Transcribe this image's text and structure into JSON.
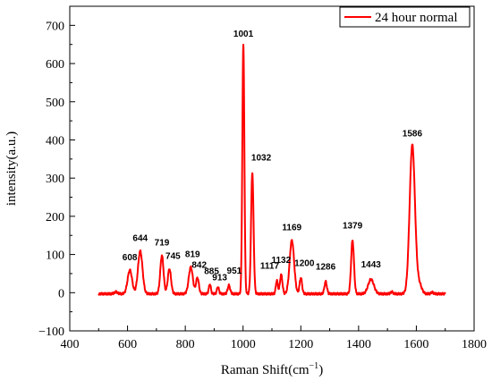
{
  "chart_data": {
    "type": "line",
    "xlabel": "Raman Shift(cm",
    "xlabel_superscript": "−1",
    "xlabel_suffix": ")",
    "ylabel": "intensity(a.u.)",
    "xlim": [
      400,
      1800
    ],
    "ylim": [
      -100,
      750
    ],
    "xticks": [
      400,
      600,
      800,
      1000,
      1200,
      1400,
      1600,
      1800
    ],
    "yticks": [
      -100,
      0,
      100,
      200,
      300,
      400,
      500,
      600,
      700
    ],
    "grid": false,
    "legend": {
      "position": "top-right"
    },
    "series": [
      {
        "name": "24 hour normal",
        "color": "#ff0000",
        "baseline": {
          "x": [
            500,
            1700
          ],
          "y": -3
        },
        "peaks": [
          {
            "x": 560,
            "height": 5,
            "width": 8
          },
          {
            "x": 608,
            "height": 62,
            "width": 11
          },
          {
            "x": 644,
            "height": 112,
            "width": 11
          },
          {
            "x": 719,
            "height": 100,
            "width": 8
          },
          {
            "x": 745,
            "height": 65,
            "width": 8
          },
          {
            "x": 819,
            "height": 70,
            "width": 10
          },
          {
            "x": 842,
            "height": 42,
            "width": 7
          },
          {
            "x": 885,
            "height": 25,
            "width": 5
          },
          {
            "x": 913,
            "height": 18,
            "width": 5
          },
          {
            "x": 951,
            "height": 22,
            "width": 6
          },
          {
            "x": 1001,
            "height": 652,
            "width": 5
          },
          {
            "x": 1032,
            "height": 318,
            "width": 6
          },
          {
            "x": 1117,
            "height": 35,
            "width": 5
          },
          {
            "x": 1132,
            "height": 50,
            "width": 6
          },
          {
            "x": 1169,
            "height": 140,
            "width": 11
          },
          {
            "x": 1200,
            "height": 42,
            "width": 6
          },
          {
            "x": 1286,
            "height": 32,
            "width": 6
          },
          {
            "x": 1379,
            "height": 140,
            "width": 7
          },
          {
            "x": 1443,
            "height": 38,
            "width": 14
          },
          {
            "x": 1515,
            "height": 5,
            "width": 6
          },
          {
            "x": 1586,
            "height": 390,
            "width": 13
          },
          {
            "x": 1610,
            "height": 25,
            "width": 12
          },
          {
            "x": 1655,
            "height": 4,
            "width": 6
          }
        ]
      }
    ],
    "peak_labels": [
      {
        "text": "608",
        "x": 608,
        "y": 62
      },
      {
        "text": "644",
        "x": 644,
        "y": 112
      },
      {
        "text": "719",
        "x": 719,
        "y": 100
      },
      {
        "text": "745",
        "x": 745,
        "y": 65
      },
      {
        "text": "819",
        "x": 819,
        "y": 70
      },
      {
        "text": "842",
        "x": 842,
        "y": 42
      },
      {
        "text": "885",
        "x": 885,
        "y": 25
      },
      {
        "text": "913",
        "x": 913,
        "y": 18
      },
      {
        "text": "951",
        "x": 951,
        "y": 22
      },
      {
        "text": "1001",
        "x": 1001,
        "y": 652
      },
      {
        "text": "1032",
        "x": 1032,
        "y": 318
      },
      {
        "text": "1117",
        "x": 1117,
        "y": 35
      },
      {
        "text": "1132",
        "x": 1132,
        "y": 50
      },
      {
        "text": "1169",
        "x": 1169,
        "y": 140
      },
      {
        "text": "1200",
        "x": 1200,
        "y": 42
      },
      {
        "text": "1286",
        "x": 1286,
        "y": 32
      },
      {
        "text": "1379",
        "x": 1379,
        "y": 140
      },
      {
        "text": "1443",
        "x": 1443,
        "y": 38
      },
      {
        "text": "1586",
        "x": 1586,
        "y": 390
      }
    ]
  }
}
